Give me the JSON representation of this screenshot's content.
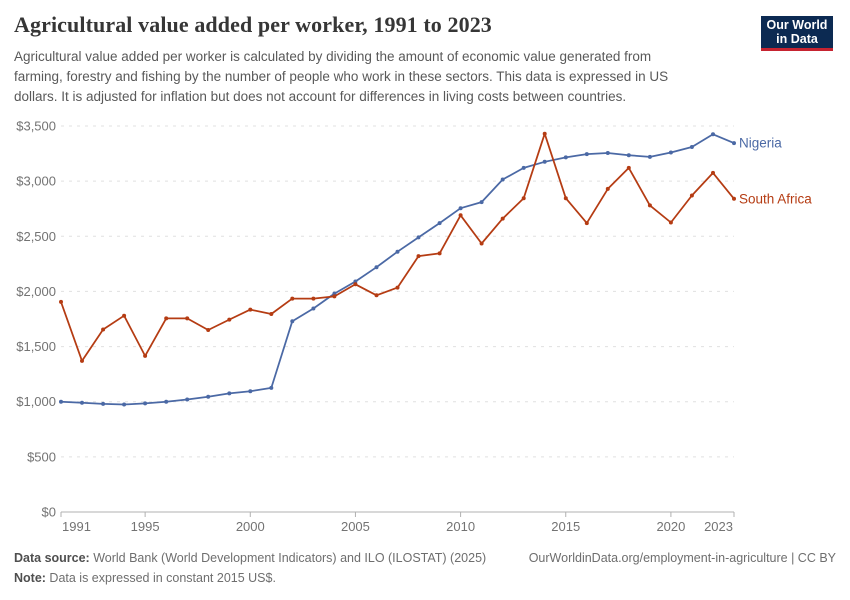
{
  "header": {
    "title": "Agricultural value added per worker, 1991 to 2023",
    "subtitle_lines": [
      "Agricultural value added per worker is calculated by dividing the amount of economic value generated from",
      "farming, forestry and fishing by the number of people who work in these sectors. This data is expressed in US",
      "dollars. It is adjusted for inflation but does not account for differences in living costs between countries."
    ],
    "logo": {
      "line1": "Our World",
      "line2": "in Data",
      "bg_color": "#0c2a52",
      "stripe_color": "#c62330"
    }
  },
  "chart_data": {
    "type": "line",
    "title": "Agricultural value added per worker, 1991 to 2023",
    "xlabel": "",
    "ylabel": "",
    "x": [
      1991,
      1992,
      1993,
      1994,
      1995,
      1996,
      1997,
      1998,
      1999,
      2000,
      2001,
      2002,
      2003,
      2004,
      2005,
      2006,
      2007,
      2008,
      2009,
      2010,
      2011,
      2012,
      2013,
      2014,
      2015,
      2016,
      2017,
      2018,
      2019,
      2020,
      2021,
      2022,
      2023
    ],
    "series": [
      {
        "name": "Nigeria",
        "color": "#4b69a5",
        "values": [
          1000,
          990,
          980,
          975,
          985,
          1000,
          1020,
          1045,
          1075,
          1095,
          1125,
          1730,
          1845,
          1980,
          2090,
          2220,
          2360,
          2490,
          2620,
          2755,
          2810,
          3015,
          3120,
          3175,
          3215,
          3245,
          3255,
          3235,
          3220,
          3260,
          3310,
          3425,
          3345
        ]
      },
      {
        "name": "South Africa",
        "color": "#b53c13",
        "values": [
          1905,
          1370,
          1655,
          1780,
          1415,
          1755,
          1755,
          1650,
          1745,
          1835,
          1795,
          1935,
          1935,
          1955,
          2065,
          1965,
          2035,
          2320,
          2345,
          2690,
          2435,
          2660,
          2845,
          3430,
          2845,
          2620,
          2930,
          3120,
          2780,
          2625,
          2870,
          3075,
          2840
        ]
      }
    ],
    "ylim": [
      0,
      3500
    ],
    "xlim": [
      1991,
      2023
    ],
    "yticks": [
      0,
      500,
      1000,
      1500,
      2000,
      2500,
      3000,
      3500
    ],
    "ytick_labels": [
      "$0",
      "$500",
      "$1,000",
      "$1,500",
      "$2,000",
      "$2,500",
      "$3,000",
      "$3,500"
    ],
    "xticks": [
      1991,
      1995,
      2000,
      2005,
      2010,
      2015,
      2020,
      2023
    ],
    "grid": "horizontal dashed",
    "legend_position": "line-end labels, right side"
  },
  "footer": {
    "datasource_label": "Data source:",
    "datasource_text": " World Bank (World Development Indicators) and ILO (ILOSTAT) (2025)",
    "link_text": "OurWorldinData.org/employment-in-agriculture | CC BY",
    "note_label": "Note:",
    "note_text": " Data is expressed in constant 2015 US$."
  },
  "colors": {
    "grid": "#e0e0e0",
    "axis": "#b0b0b0",
    "tick_label": "#737373",
    "title": "#363636",
    "subtitle": "#595959"
  }
}
